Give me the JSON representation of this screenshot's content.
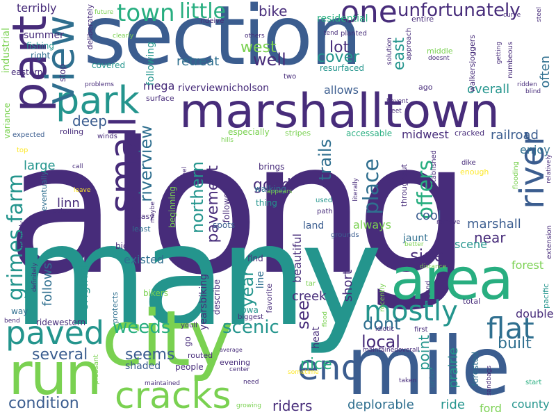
{
  "palette": {
    "dark_purple": "#472c7a",
    "steel_blue": "#3b5d8f",
    "mid_blue": "#2f6f8f",
    "teal": "#24958d",
    "green": "#28ae80",
    "light_green": "#7ad151",
    "yellow": "#fde725"
  },
  "words": [
    {
      "text": "along"
    },
    {
      "text": "many"
    },
    {
      "text": "section"
    },
    {
      "text": "marshalltown"
    },
    {
      "text": "mile"
    },
    {
      "text": "city"
    },
    {
      "text": "run"
    },
    {
      "text": "area"
    },
    {
      "text": "part"
    },
    {
      "text": "park"
    },
    {
      "text": "view"
    },
    {
      "text": "cracks"
    },
    {
      "text": "paved"
    },
    {
      "text": "small"
    },
    {
      "text": "river"
    },
    {
      "text": "end"
    },
    {
      "text": "one"
    },
    {
      "text": "flat"
    },
    {
      "text": "mostly"
    },
    {
      "text": "unfortunately"
    },
    {
      "text": "town"
    },
    {
      "text": "little"
    },
    {
      "text": "bike"
    },
    {
      "text": "trails"
    },
    {
      "text": "place"
    },
    {
      "text": "offers"
    },
    {
      "text": "riverview"
    },
    {
      "text": "pavement"
    },
    {
      "text": "northern"
    },
    {
      "text": "grimes farm"
    },
    {
      "text": "weeds"
    },
    {
      "text": "scenic"
    },
    {
      "text": "dont"
    },
    {
      "text": "local"
    },
    {
      "text": "built"
    },
    {
      "text": "several"
    },
    {
      "text": "seems"
    },
    {
      "text": "condition"
    },
    {
      "text": "riders"
    },
    {
      "text": "deplorable"
    },
    {
      "text": "nice"
    },
    {
      "text": "point"
    },
    {
      "text": "prairie"
    },
    {
      "text": "see"
    },
    {
      "text": "year"
    },
    {
      "text": "side"
    },
    {
      "text": "creek"
    },
    {
      "text": "railroad"
    },
    {
      "text": "enjoy"
    },
    {
      "text": "overall"
    },
    {
      "text": "midwest"
    },
    {
      "text": "lot"
    },
    {
      "text": "well"
    },
    {
      "text": "cover"
    },
    {
      "text": "west"
    },
    {
      "text": "east"
    },
    {
      "text": "retreat"
    },
    {
      "text": "deep"
    },
    {
      "text": "large"
    },
    {
      "text": "linn"
    },
    {
      "text": "good"
    },
    {
      "text": "always"
    },
    {
      "text": "marshall"
    },
    {
      "text": "cool"
    },
    {
      "text": "near"
    },
    {
      "text": "scene"
    },
    {
      "text": "forest"
    },
    {
      "text": "double"
    },
    {
      "text": "often"
    },
    {
      "text": "existed"
    },
    {
      "text": "follows"
    },
    {
      "text": "original"
    },
    {
      "text": "short"
    },
    {
      "text": "beautiful"
    },
    {
      "text": "ride"
    },
    {
      "text": "ford"
    },
    {
      "text": "county"
    },
    {
      "text": "riverviewnicholson"
    },
    {
      "text": "allows"
    },
    {
      "text": "mega"
    },
    {
      "text": "residential"
    },
    {
      "text": "resurfaced"
    },
    {
      "text": "industrial"
    },
    {
      "text": "summer"
    },
    {
      "text": "fishing"
    },
    {
      "text": "right"
    },
    {
      "text": "eastern"
    },
    {
      "text": "terribly"
    },
    {
      "text": "stop"
    },
    {
      "text": "covered"
    },
    {
      "text": "following"
    },
    {
      "text": "yearsbiking"
    },
    {
      "text": "describe"
    },
    {
      "text": "land"
    },
    {
      "text": "jaunt"
    },
    {
      "text": "especially"
    },
    {
      "text": "accessable"
    },
    {
      "text": "cracked"
    },
    {
      "text": "followed"
    },
    {
      "text": "beginning"
    },
    {
      "text": "brings"
    },
    {
      "text": "walking"
    },
    {
      "text": "thing"
    },
    {
      "text": "spots"
    },
    {
      "text": "line"
    },
    {
      "text": "find"
    },
    {
      "text": "favorite"
    },
    {
      "text": "iowa"
    },
    {
      "text": "biggest"
    },
    {
      "text": "heat"
    },
    {
      "text": "go"
    },
    {
      "text": "shaded"
    },
    {
      "text": "people"
    },
    {
      "text": "routed"
    },
    {
      "text": "evening"
    },
    {
      "text": "center"
    },
    {
      "text": "youll"
    },
    {
      "text": "bikers"
    },
    {
      "text": "protects"
    },
    {
      "text": "ridewestern"
    },
    {
      "text": "way"
    },
    {
      "text": "bend"
    },
    {
      "text": "maintained"
    },
    {
      "text": "maintainedoverall"
    },
    {
      "text": "sandbags"
    },
    {
      "text": "pacific"
    },
    {
      "text": "extension"
    },
    {
      "text": "total"
    },
    {
      "text": "forested"
    },
    {
      "text": "union"
    },
    {
      "text": "taken"
    },
    {
      "text": "start"
    },
    {
      "text": "growing"
    },
    {
      "text": "need"
    },
    {
      "text": "average"
    },
    {
      "text": "sometime"
    },
    {
      "text": "pleasant"
    },
    {
      "text": "variance"
    },
    {
      "text": "expected"
    },
    {
      "text": "top"
    },
    {
      "text": "call"
    },
    {
      "text": "leave"
    },
    {
      "text": "poles"
    },
    {
      "text": "eventually"
    },
    {
      "text": "regularly"
    },
    {
      "text": "definitely"
    },
    {
      "text": "rolling"
    },
    {
      "text": "winds"
    },
    {
      "text": "hills"
    },
    {
      "text": "stripes"
    },
    {
      "text": "easy"
    },
    {
      "text": "least"
    },
    {
      "text": "big"
    },
    {
      "text": "maybe"
    },
    {
      "text": "feel"
    },
    {
      "text": "path"
    },
    {
      "text": "used"
    },
    {
      "text": "appears"
    },
    {
      "text": "literally"
    },
    {
      "text": "throughout"
    },
    {
      "text": "grounds"
    },
    {
      "text": "remove"
    },
    {
      "text": "established"
    },
    {
      "text": "dike"
    },
    {
      "text": "enough"
    },
    {
      "text": "flooding"
    },
    {
      "text": "relatively"
    },
    {
      "text": "better"
    },
    {
      "text": "distance"
    },
    {
      "text": "around"
    },
    {
      "text": "recently"
    },
    {
      "text": "idiotic"
    },
    {
      "text": "first"
    },
    {
      "text": "flood"
    },
    {
      "text": "tar"
    },
    {
      "text": "two"
    },
    {
      "text": "others"
    },
    {
      "text": "clearly"
    },
    {
      "text": "rideive"
    },
    {
      "text": "future"
    },
    {
      "text": "deliberately"
    },
    {
      "text": "problems"
    },
    {
      "text": "surface"
    },
    {
      "text": "tend"
    },
    {
      "text": "planted"
    },
    {
      "text": "entire"
    },
    {
      "text": "curve"
    },
    {
      "text": "steel"
    },
    {
      "text": "solution"
    },
    {
      "text": "approach"
    },
    {
      "text": "middle"
    },
    {
      "text": "doesnt"
    },
    {
      "text": "walkersjoggers"
    },
    {
      "text": "getting"
    },
    {
      "text": "numbeous"
    },
    {
      "text": "ridden"
    },
    {
      "text": "blind"
    },
    {
      "text": "ago"
    },
    {
      "text": "havent"
    },
    {
      "text": "feet"
    }
  ]
}
